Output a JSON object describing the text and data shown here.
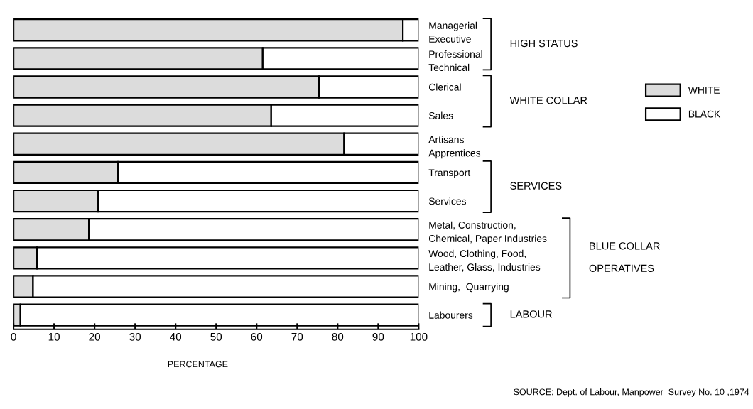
{
  "chart_data": {
    "type": "bar",
    "orientation": "horizontal",
    "stacked": true,
    "xlabel": "PERCENTAGE",
    "categories": [
      "Managerial\nExecutive",
      "Professional\nTechnical",
      "Clerical",
      "Sales",
      "Artisans\nApprentices",
      "Transport",
      "Services",
      "Metal, Construction,\nChemical, Paper Industries",
      "Wood, Clothing, Food,\nLeather, Glass, Industries",
      "Mining,  Quarrying",
      "Labourers"
    ],
    "series": [
      {
        "name": "WHITE",
        "color": "#dcdcdc",
        "values": [
          96.1,
          61.5,
          75.4,
          63.6,
          81.6,
          25.8,
          20.9,
          18.6,
          5.8,
          4.8,
          1.7
        ]
      },
      {
        "name": "BLACK",
        "color": "#ffffff",
        "values": [
          3.9,
          38.5,
          24.6,
          36.4,
          18.4,
          74.2,
          79.1,
          81.4,
          94.2,
          95.2,
          98.3
        ]
      }
    ],
    "xlim": [
      0,
      100
    ],
    "xticks": [
      0,
      10,
      20,
      30,
      40,
      50,
      60,
      70,
      80,
      90,
      100
    ],
    "legend": "right",
    "grid": false,
    "annotations": [
      "HIGH STATUS",
      "WHITE COLLAR",
      "SERVICES",
      "BLUE COLLAR\n\nOPERATIVES",
      "LABOUR",
      "SOURCE: Dept. of Labour, Manpower  Survey No. 10 ,1974"
    ]
  }
}
